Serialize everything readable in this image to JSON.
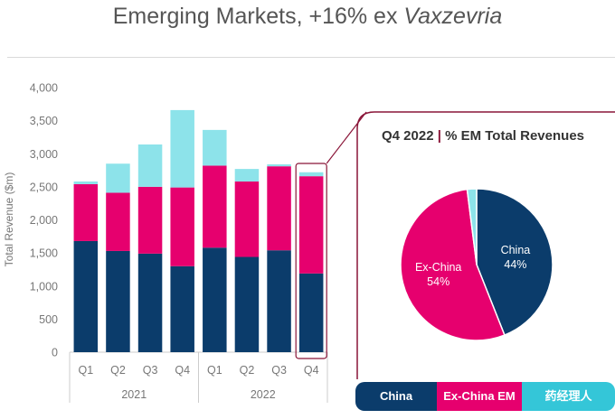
{
  "title": {
    "main": "Emerging Markets, +16% ex ",
    "emphasis": "Vaxzevria"
  },
  "colors": {
    "china": "#0b3c6b",
    "ex_china": "#e6006e",
    "other": "#8de3ea",
    "callout_border": "#8a1538",
    "axis_text": "#777777"
  },
  "chart_data": [
    {
      "type": "bar",
      "stacked": true,
      "ylabel": "Total Revenue ($m)",
      "ylim": [
        0,
        4000
      ],
      "yticks": [
        0,
        500,
        1000,
        1500,
        2000,
        2500,
        3000,
        3500,
        4000
      ],
      "ytick_labels": [
        "0",
        "500",
        "1,000",
        "1,500",
        "2,000",
        "2,500",
        "3,000",
        "3,500",
        "4,000"
      ],
      "categories": [
        "Q1",
        "Q2",
        "Q3",
        "Q4",
        "Q1",
        "Q2",
        "Q3",
        "Q4"
      ],
      "groups": [
        {
          "label": "2021",
          "count": 4
        },
        {
          "label": "2022",
          "count": 4
        }
      ],
      "grid": false,
      "series": [
        {
          "name": "China",
          "values": [
            1680,
            1530,
            1490,
            1300,
            1580,
            1440,
            1540,
            1190
          ]
        },
        {
          "name": "Ex-China EM",
          "values": [
            860,
            880,
            1010,
            1190,
            1240,
            1140,
            1270,
            1470
          ]
        },
        {
          "values": [
            40,
            440,
            640,
            1170,
            540,
            190,
            30,
            60
          ]
        }
      ]
    },
    {
      "type": "pie",
      "title": "Q4 2022",
      "title_separator": "|",
      "subtitle": "% EM Total Revenues",
      "slices": [
        {
          "label": "China",
          "value": 44,
          "value_label": "44%"
        },
        {
          "label": "Ex-China",
          "value": 54,
          "value_label": "54%"
        },
        {
          "value": 2
        }
      ]
    }
  ],
  "legend": {
    "items": [
      "China",
      "Ex-China EM",
      "药经理人"
    ]
  }
}
